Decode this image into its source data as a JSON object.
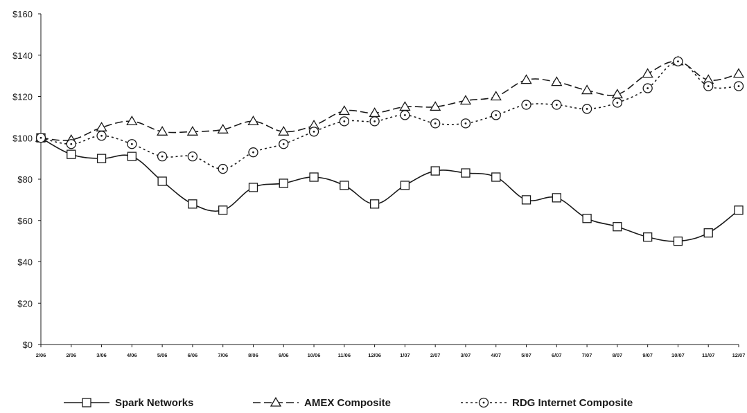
{
  "chart_data": {
    "type": "line",
    "title": "",
    "xlabel": "",
    "ylabel": "",
    "ylim": [
      0,
      160
    ],
    "y_ticks": [
      "$0",
      "$20",
      "$40",
      "$60",
      "$80",
      "$100",
      "$120",
      "$140",
      "$160"
    ],
    "y_tick_values": [
      0,
      20,
      40,
      60,
      80,
      100,
      120,
      140,
      160
    ],
    "categories": [
      "2/06",
      "2/06",
      "3/06",
      "4/06",
      "5/06",
      "6/06",
      "7/06",
      "8/06",
      "9/06",
      "10/06",
      "11/06",
      "12/06",
      "1/07",
      "2/07",
      "3/07",
      "4/07",
      "5/07",
      "6/07",
      "7/07",
      "8/07",
      "9/07",
      "10/07",
      "11/07",
      "12/07"
    ],
    "grid": false,
    "legend_position": "bottom",
    "series": [
      {
        "name": "Spark Networks",
        "style": "solid",
        "marker": "square",
        "color": "#1a1a1a",
        "values": [
          100,
          92,
          90,
          91,
          79,
          68,
          65,
          76,
          78,
          81,
          77,
          68,
          77,
          84,
          83,
          81,
          70,
          71,
          61,
          57,
          52,
          50,
          54,
          65
        ]
      },
      {
        "name": "AMEX Composite",
        "style": "dashed",
        "marker": "triangle",
        "color": "#1a1a1a",
        "values": [
          100,
          99,
          105,
          108,
          103,
          103,
          104,
          108,
          103,
          106,
          113,
          112,
          115,
          115,
          118,
          120,
          128,
          127,
          123,
          121,
          131,
          137,
          128,
          131
        ]
      },
      {
        "name": "RDG Internet Composite",
        "style": "dotted",
        "marker": "circle",
        "color": "#1a1a1a",
        "values": [
          100,
          97,
          101,
          97,
          91,
          91,
          85,
          93,
          97,
          103,
          108,
          108,
          111,
          107,
          107,
          111,
          116,
          116,
          114,
          117,
          124,
          137,
          125,
          125
        ]
      }
    ]
  }
}
